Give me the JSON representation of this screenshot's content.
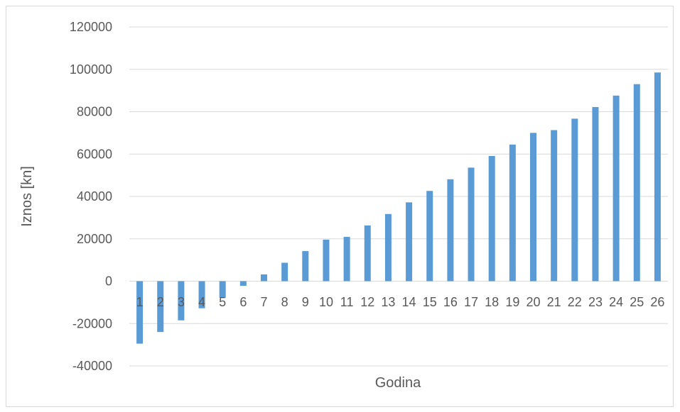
{
  "chart_data": {
    "type": "bar",
    "categories": [
      "1",
      "2",
      "3",
      "4",
      "5",
      "6",
      "7",
      "8",
      "9",
      "10",
      "11",
      "12",
      "13",
      "14",
      "15",
      "16",
      "17",
      "18",
      "19",
      "20",
      "21",
      "22",
      "23",
      "24",
      "25",
      "26"
    ],
    "values": [
      -29500,
      -24000,
      -18500,
      -12800,
      -7800,
      -2200,
      3200,
      8700,
      14200,
      19600,
      20900,
      26300,
      31700,
      37200,
      42600,
      48100,
      53600,
      59100,
      64500,
      70000,
      71300,
      76700,
      82200,
      87600,
      93000,
      98500
    ],
    "title": "",
    "xlabel": "Godina",
    "ylabel": "Iznos [kn]",
    "ylim": [
      -40000,
      120000
    ],
    "yticks": [
      -40000,
      -20000,
      0,
      20000,
      40000,
      60000,
      80000,
      100000,
      120000
    ],
    "ytick_labels": [
      "-40000",
      "-20000",
      "0",
      "20000",
      "40000",
      "60000",
      "80000",
      "100000",
      "120000"
    ],
    "grid": true,
    "bar_color": "#5b9bd5",
    "grid_color": "#d9d9d9",
    "text_color": "#595959"
  }
}
